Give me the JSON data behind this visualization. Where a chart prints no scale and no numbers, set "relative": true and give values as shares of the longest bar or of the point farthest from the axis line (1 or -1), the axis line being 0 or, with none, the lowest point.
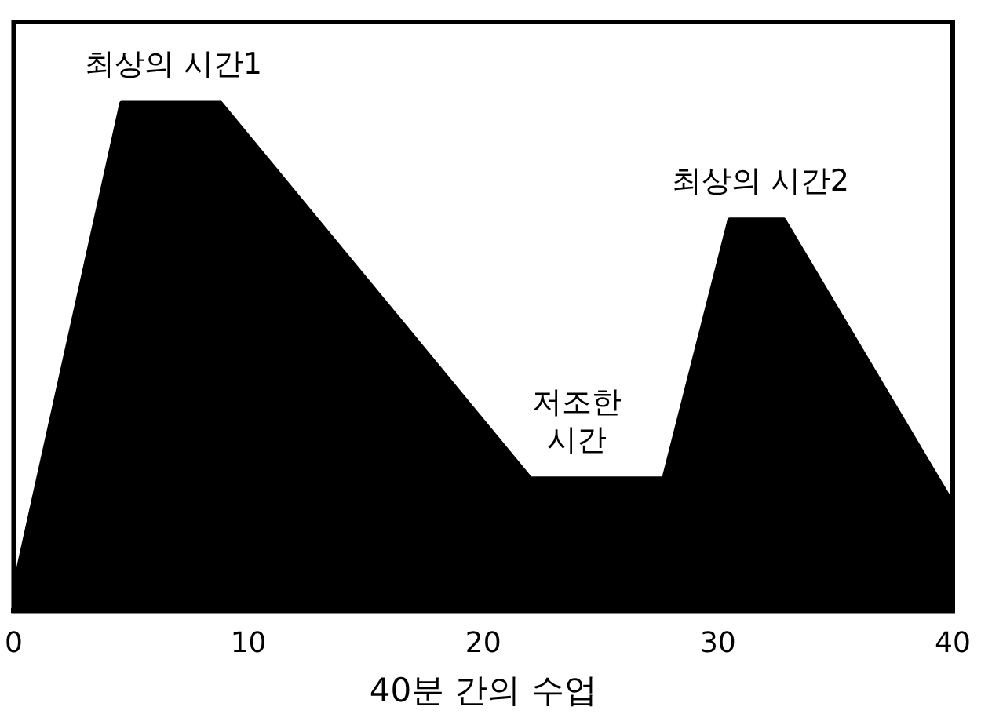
{
  "chart_data": {
    "type": "area",
    "relative": true,
    "xlabel": "40분 간의 수업",
    "xlim": [
      0,
      40
    ],
    "xticks": [
      0,
      10,
      20,
      30,
      40
    ],
    "grid": false,
    "legend": false,
    "marker": "none",
    "series": [
      {
        "color": "#000000",
        "x": [
          0,
          4.6,
          8.8,
          22,
          27.7,
          30.5,
          32.8,
          40
        ],
        "values": [
          0.04,
          1,
          1,
          0.26,
          0.26,
          0.77,
          0.77,
          0.21
        ]
      }
    ],
    "annotations": [
      {
        "text": "최상의 시간1",
        "x": 6.8,
        "y": 1
      },
      {
        "text": "저조한\n시간",
        "x": 24,
        "y": 0.26
      },
      {
        "text": "최상의 시간2",
        "x": 31.8,
        "y": 0.77
      }
    ]
  }
}
